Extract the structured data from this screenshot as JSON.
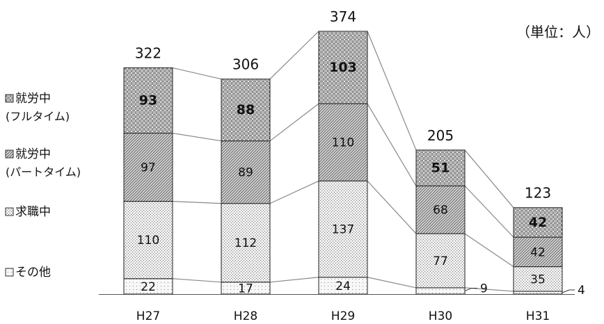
{
  "unit_label": "（単位：人）",
  "legend": [
    {
      "line1": "就労中",
      "line2": "(フルタイム)",
      "pattern": "pat-full"
    },
    {
      "line1": "就労中",
      "line2": "(パートタイム)",
      "pattern": "pat-part"
    },
    {
      "line1": "求職中",
      "line2": "",
      "pattern": "pat-seek"
    },
    {
      "line1": "その他",
      "line2": "",
      "pattern": "pat-other"
    }
  ],
  "colors": {
    "bar_stroke": "#222222",
    "connector": "#888888",
    "text": "#111111"
  },
  "chart_data": {
    "type": "bar",
    "stacked": true,
    "title": "",
    "xlabel": "",
    "ylabel": "",
    "unit": "（単位：人）",
    "categories": [
      "H27",
      "H28",
      "H29",
      "H30",
      "H31"
    ],
    "series": [
      {
        "name": "その他",
        "values": [
          22,
          17,
          24,
          9,
          4
        ],
        "pattern": "pat-other"
      },
      {
        "name": "求職中",
        "values": [
          110,
          112,
          137,
          77,
          35
        ],
        "pattern": "pat-seek"
      },
      {
        "name": "就労中(パートタイム)",
        "values": [
          97,
          89,
          110,
          68,
          42
        ],
        "pattern": "pat-part"
      },
      {
        "name": "就労中(フルタイム)",
        "values": [
          93,
          88,
          103,
          51,
          42
        ],
        "pattern": "pat-full"
      }
    ],
    "totals": [
      322,
      306,
      374,
      205,
      123
    ],
    "ylim": [
      0,
      374
    ],
    "grid": false,
    "legend_position": "left",
    "connector_lines": true
  }
}
